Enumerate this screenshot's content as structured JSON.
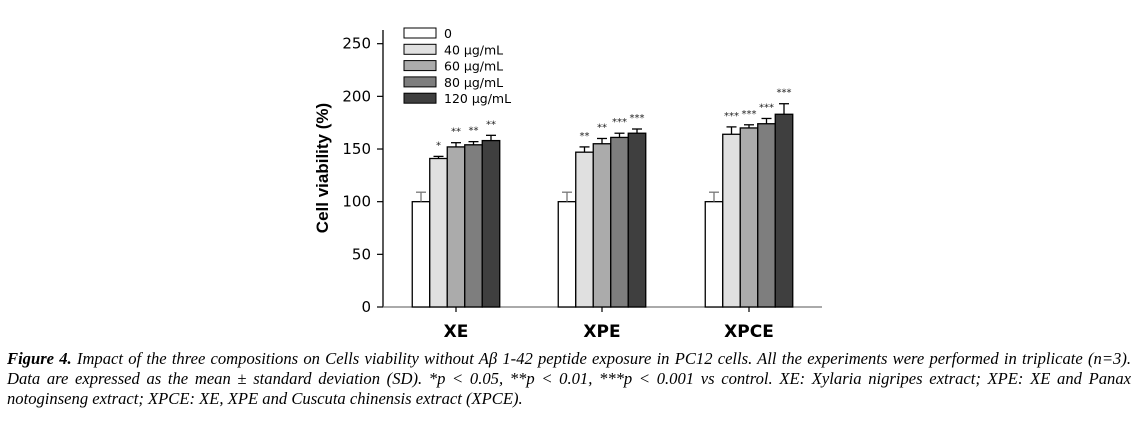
{
  "chart_data": {
    "type": "bar",
    "title": "",
    "xlabel": "",
    "ylabel": "Cell viability (%)",
    "ylim": [
      0,
      263
    ],
    "yticks": [
      0,
      50,
      100,
      150,
      200,
      250
    ],
    "grid": false,
    "legend_position": "top-left",
    "categories": [
      "XE",
      "XPE",
      "XPCE"
    ],
    "series": [
      {
        "name": "0",
        "color": "#ffffff",
        "values": [
          100,
          100,
          100
        ],
        "errors": [
          9,
          9,
          9
        ],
        "significance": [
          "",
          "",
          ""
        ]
      },
      {
        "name": "40 µg/mL",
        "color": "#e0e0e0",
        "values": [
          141,
          147,
          164
        ],
        "errors": [
          2,
          5,
          7
        ],
        "significance": [
          "*",
          "**",
          "***"
        ]
      },
      {
        "name": "60 µg/mL",
        "color": "#ababab",
        "values": [
          152,
          155,
          170
        ],
        "errors": [
          4,
          5,
          3
        ],
        "significance": [
          "**",
          "**",
          "***"
        ]
      },
      {
        "name": "80 µg/mL",
        "color": "#7e7e7e",
        "values": [
          154,
          161,
          174
        ],
        "errors": [
          3,
          4,
          5
        ],
        "significance": [
          "**",
          "***",
          "***"
        ]
      },
      {
        "name": "120 µg/mL",
        "color": "#3f3f3f",
        "values": [
          158,
          165,
          183
        ],
        "errors": [
          5,
          4,
          10
        ],
        "significance": [
          "**",
          "***",
          "***"
        ]
      }
    ]
  },
  "caption": {
    "label": "Figure 4.",
    "text": " Impact of the three compositions on Cells viability without Aβ 1-42 peptide exposure in PC12 cells. All the experiments were performed in triplicate (n=3). Data are expressed as the mean ± standard deviation (SD). *p < 0.05, **p < 0.01, ***p < 0.001 vs control. XE: Xylaria nigripes extract; XPE: XE and Panax notoginseng extract; XPCE: XE, XPE and Cuscuta chinensis extract (XPCE)."
  }
}
